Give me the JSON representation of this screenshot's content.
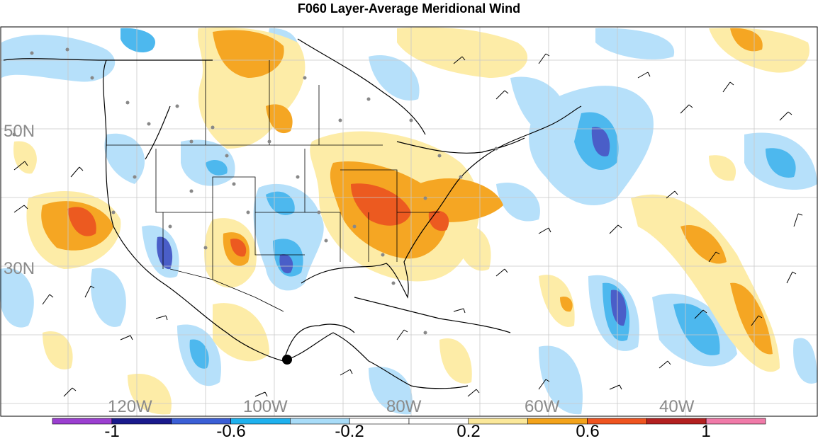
{
  "title": "F060 Layer-Average Meridional Wind",
  "lat_labels": [
    "50N",
    "30N"
  ],
  "lon_labels": [
    "120W",
    "100W",
    "80W",
    "60W",
    "40W"
  ],
  "colorbar": {
    "labels": [
      "-1",
      "-0.6",
      "-0.2",
      "0.2",
      "0.6",
      "1"
    ],
    "colors": [
      "#9b3fd0",
      "#1a1a8c",
      "#3b5fd6",
      "#1fb1ee",
      "#a8dcf8",
      "#ffffff",
      "#ffffff",
      "#fbe89a",
      "#f3a31b",
      "#ef5420",
      "#b32020",
      "#f07aa8"
    ]
  },
  "legend_colors": {
    "neg_light": "#b6e0fa",
    "neg_mid": "#4db8ee",
    "neg_strong": "#4a5ec8",
    "pos_light": "#fdeca7",
    "pos_mid": "#f5a623",
    "pos_strong": "#ec5a20"
  }
}
